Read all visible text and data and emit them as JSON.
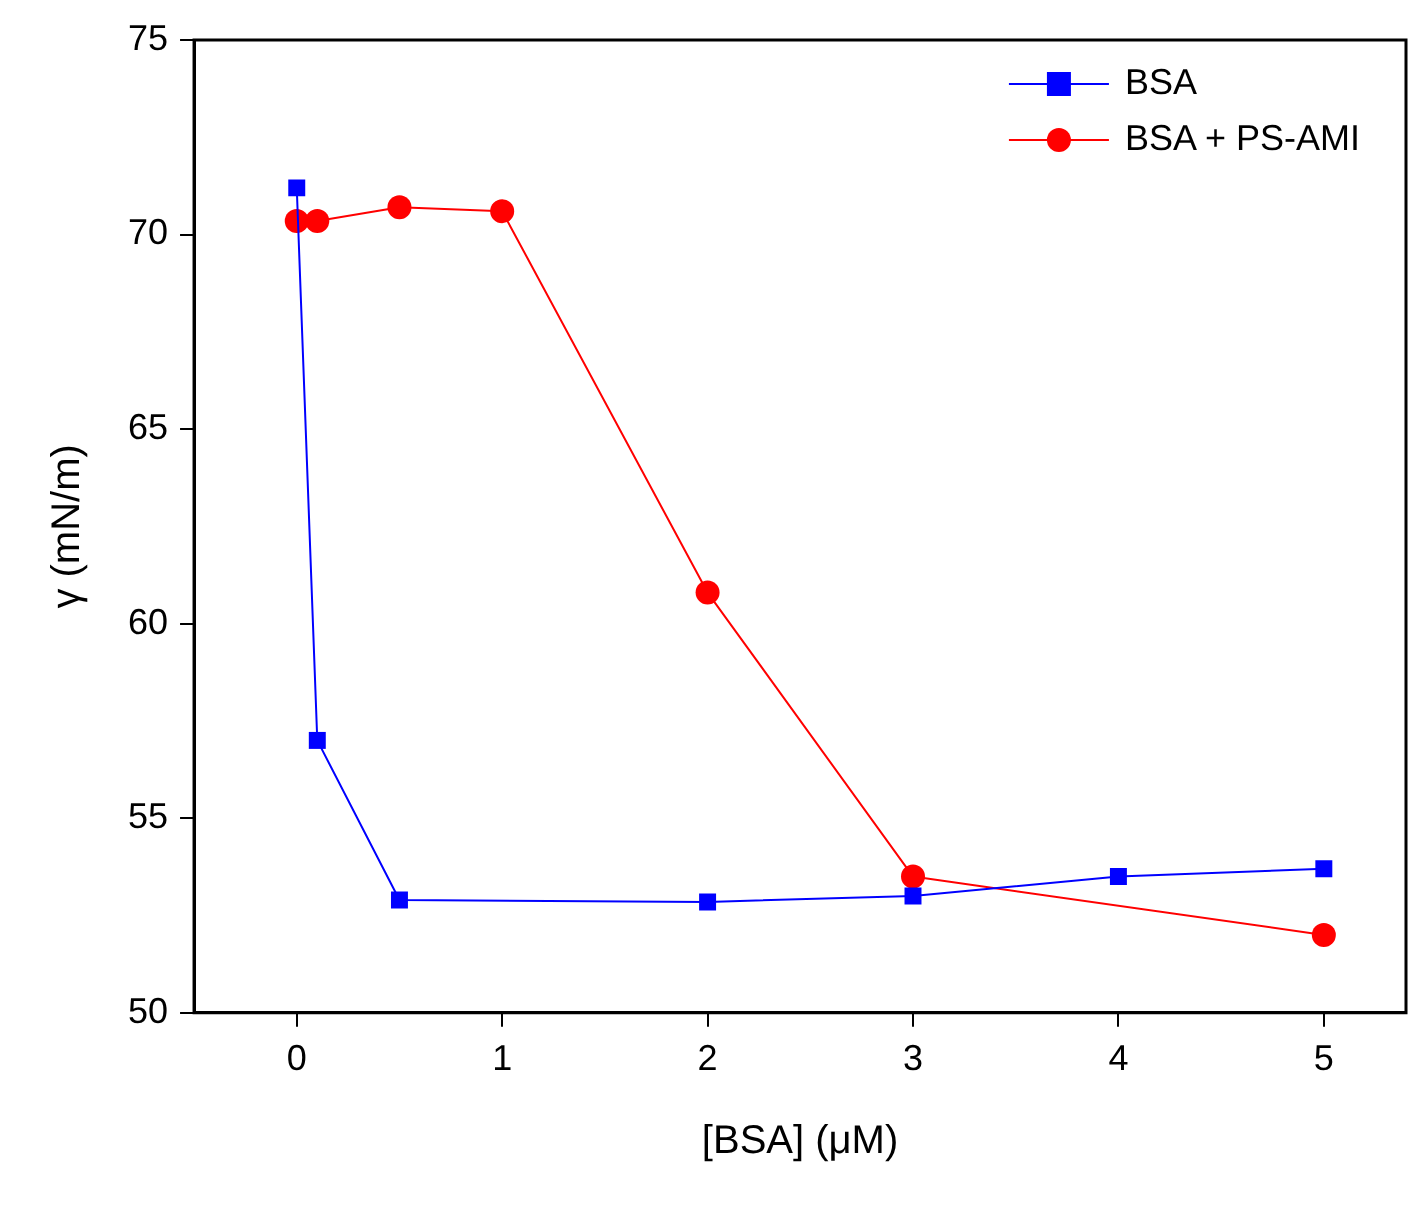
{
  "chart_data": {
    "type": "line",
    "xlabel": "[BSA] (μM)",
    "ylabel": "γ (mN/m)",
    "xlim": [
      -0.5,
      5.4
    ],
    "xticks": [
      0,
      1,
      2,
      3,
      4,
      5
    ],
    "ylim": [
      50,
      75
    ],
    "yticks": [
      50,
      55,
      60,
      65,
      70,
      75
    ],
    "grid": false,
    "legend": "top right",
    "series": [
      {
        "name": "BSA",
        "color": "#0000ff",
        "marker": "square",
        "x": [
          0,
          0.1,
          0.5,
          2,
          3,
          4,
          5
        ],
        "values": [
          71.2,
          57.0,
          52.9,
          52.85,
          53.0,
          53.5,
          53.7
        ]
      },
      {
        "name": "BSA + PS-AMI",
        "color": "#ff0000",
        "marker": "circle",
        "x": [
          0,
          0.1,
          0.5,
          1,
          2,
          3,
          5
        ],
        "values": [
          70.35,
          70.35,
          70.7,
          70.6,
          60.8,
          53.5,
          52.0
        ]
      }
    ]
  }
}
